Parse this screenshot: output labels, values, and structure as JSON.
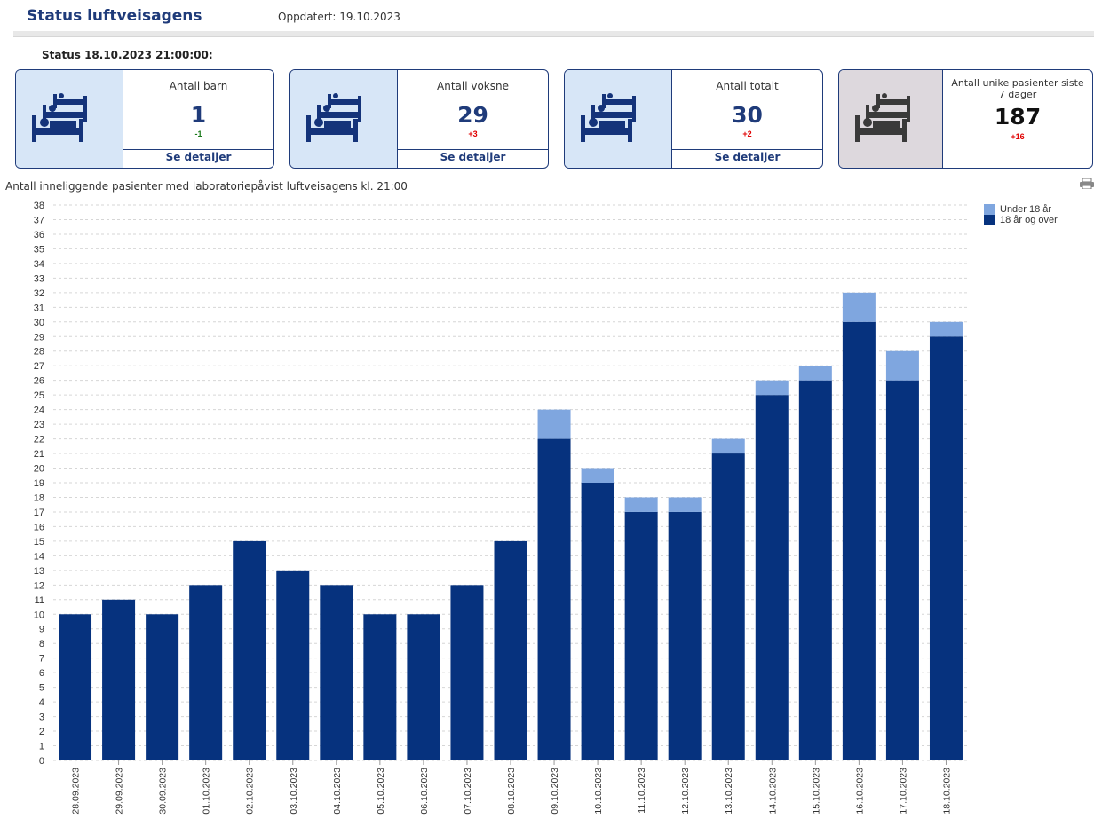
{
  "header": {
    "title": "Status luftveisagens",
    "updated": "Oppdatert: 19.10.2023"
  },
  "status_line": "Status 18.10.2023 21:00:00:",
  "cards": [
    {
      "label": "Antall barn",
      "value": "1",
      "delta": "-1",
      "delta_color": "#1a7a1a",
      "link": "Se detaljer"
    },
    {
      "label": "Antall voksne",
      "value": "29",
      "delta": "+3",
      "delta_color": "#e00000",
      "link": "Se detaljer"
    },
    {
      "label": "Antall totalt",
      "value": "30",
      "delta": "+2",
      "delta_color": "#e00000",
      "link": "Se detaljer"
    },
    {
      "label": "Antall unike pasienter siste 7 dager",
      "value": "187",
      "delta": "+16",
      "delta_color": "#e00000"
    }
  ],
  "chart_title": "Antall inneliggende pasienter med laboratoriepåvist luftveisagens kl. 21:00",
  "colors": {
    "under18": "#7fa6df",
    "over18": "#06327e",
    "navy": "#1f3b7a"
  },
  "chart_data": {
    "type": "bar",
    "stacked": true,
    "categories": [
      "28.09.2023",
      "29.09.2023",
      "30.09.2023",
      "01.10.2023",
      "02.10.2023",
      "03.10.2023",
      "04.10.2023",
      "05.10.2023",
      "06.10.2023",
      "07.10.2023",
      "08.10.2023",
      "09.10.2023",
      "10.10.2023",
      "11.10.2023",
      "12.10.2023",
      "13.10.2023",
      "14.10.2023",
      "15.10.2023",
      "16.10.2023",
      "17.10.2023",
      "18.10.2023"
    ],
    "series": [
      {
        "name": "18 år og over",
        "values": [
          10,
          11,
          10,
          12,
          15,
          13,
          12,
          10,
          10,
          12,
          15,
          22,
          19,
          17,
          17,
          21,
          25,
          26,
          30,
          26,
          29
        ]
      },
      {
        "name": "Under 18 år",
        "values": [
          0,
          0,
          0,
          0,
          0,
          0,
          0,
          0,
          0,
          0,
          0,
          2,
          1,
          1,
          1,
          1,
          1,
          1,
          2,
          2,
          1
        ]
      }
    ],
    "ylim": [
      0,
      38
    ],
    "yticks": [
      0,
      1,
      2,
      3,
      4,
      5,
      6,
      7,
      8,
      9,
      10,
      11,
      12,
      13,
      14,
      15,
      16,
      17,
      18,
      19,
      20,
      21,
      22,
      23,
      24,
      25,
      26,
      27,
      28,
      29,
      30,
      31,
      32,
      33,
      34,
      35,
      36,
      37,
      38
    ],
    "grid": true,
    "legend_position": "top-right",
    "legend": [
      "Under 18 år",
      "18 år og over"
    ]
  }
}
